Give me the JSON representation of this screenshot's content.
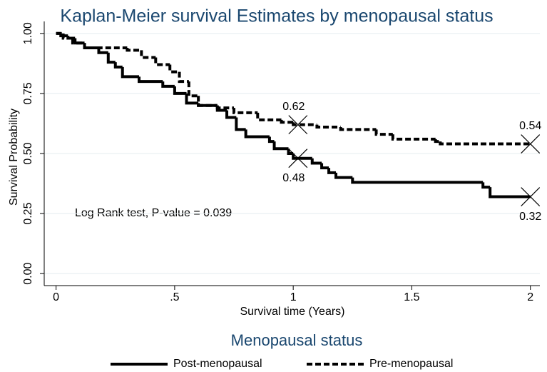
{
  "chart_data": {
    "type": "step",
    "title": "Kaplan-Meier survival Estimates by menopausal status",
    "x_label": "Survival time (Years)",
    "y_label": "Survival Probability",
    "annotation": "Log Rank test, P-value = 0.039",
    "legend_title": "Menopausal status",
    "legend": "bottom",
    "grid": true,
    "xlim": [
      -0.05,
      2.04
    ],
    "ylim": [
      -0.05,
      1.05
    ],
    "xticks": [
      0,
      {
        "value": 0.5,
        "label": ".5"
      },
      1,
      1.5,
      2
    ],
    "yticks": [
      {
        "value": 0,
        "label": "0.00"
      },
      {
        "value": 0.25,
        "label": "0.25"
      },
      {
        "value": 0.5,
        "label": "0.50"
      },
      {
        "value": 0.75,
        "label": "0.75"
      },
      {
        "value": 1,
        "label": "1.00"
      }
    ],
    "series": [
      {
        "name": "Post-menopausal",
        "color": "#000000",
        "dash": "solid",
        "x": [
          0,
          0.02,
          0.05,
          0.08,
          0.12,
          0.18,
          0.22,
          0.25,
          0.28,
          0.35,
          0.45,
          0.5,
          0.55,
          0.6,
          0.68,
          0.72,
          0.76,
          0.8,
          0.9,
          0.92,
          0.98,
          1.0,
          1.08,
          1.12,
          1.15,
          1.18,
          1.25,
          1.8,
          1.83,
          2.0
        ],
        "values": [
          1.0,
          0.99,
          0.98,
          0.96,
          0.94,
          0.92,
          0.88,
          0.86,
          0.82,
          0.8,
          0.78,
          0.75,
          0.71,
          0.7,
          0.68,
          0.65,
          0.6,
          0.57,
          0.55,
          0.52,
          0.5,
          0.48,
          0.46,
          0.44,
          0.42,
          0.4,
          0.38,
          0.36,
          0.32,
          0.32
        ],
        "points": {
          "x": [
            1.02,
            2.0
          ],
          "values": [
            0.48,
            0.32
          ]
        }
      },
      {
        "name": "Pre-menopausal",
        "color": "#000000",
        "dash": "dashed",
        "x": [
          0,
          0.03,
          0.07,
          0.12,
          0.3,
          0.36,
          0.42,
          0.48,
          0.52,
          0.56,
          0.6,
          0.68,
          0.75,
          0.85,
          0.95,
          1.0,
          1.1,
          1.2,
          1.35,
          1.42,
          1.6,
          1.62,
          2.0
        ],
        "values": [
          1.0,
          0.98,
          0.96,
          0.94,
          0.93,
          0.9,
          0.87,
          0.84,
          0.8,
          0.74,
          0.7,
          0.69,
          0.67,
          0.64,
          0.63,
          0.62,
          0.61,
          0.6,
          0.58,
          0.56,
          0.55,
          0.54,
          0.54
        ],
        "points": {
          "x": [
            1.02,
            2.0
          ],
          "values": [
            0.62,
            0.54
          ]
        }
      }
    ]
  }
}
